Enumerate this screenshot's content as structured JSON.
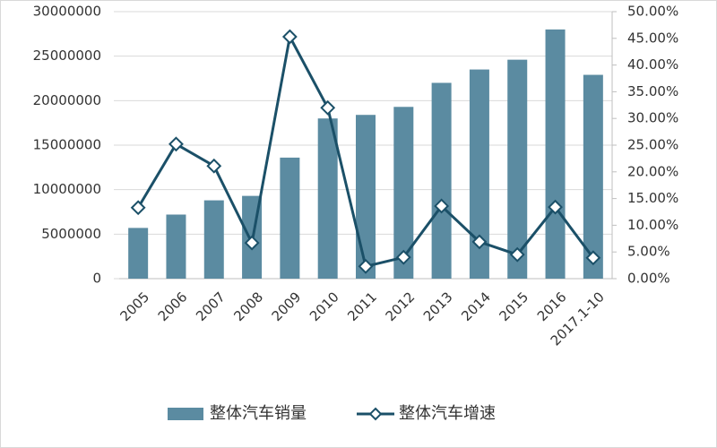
{
  "chart_data": {
    "type": "bar",
    "categories": [
      "2005",
      "2006",
      "2007",
      "2008",
      "2009",
      "2010",
      "2011",
      "2012",
      "2013",
      "2014",
      "2015",
      "2016",
      "2017.1-10"
    ],
    "series": [
      {
        "name": "整体汽车销量",
        "type": "bar",
        "color": "#5b8ba1",
        "values": [
          5700000,
          7200000,
          8800000,
          9300000,
          13600000,
          18000000,
          18400000,
          19300000,
          22000000,
          23500000,
          24600000,
          28000000,
          22900000
        ]
      },
      {
        "name": "整体汽车增速",
        "type": "line",
        "axis": "y2",
        "color": "#1b5068",
        "values": [
          13.3,
          25.2,
          21.1,
          6.7,
          45.3,
          32.0,
          2.3,
          4.0,
          13.6,
          6.9,
          4.5,
          13.4,
          3.9
        ]
      }
    ],
    "ylim": [
      0,
      30000000
    ],
    "yticks": [
      0,
      5000000,
      10000000,
      15000000,
      20000000,
      25000000,
      30000000
    ],
    "y2lim": [
      0,
      50
    ],
    "y2ticks": [
      {
        "value": 0,
        "label": "0.00%"
      },
      {
        "value": 5,
        "label": "5.00%"
      },
      {
        "value": 10,
        "label": "10.00%"
      },
      {
        "value": 15,
        "label": "15.00%"
      },
      {
        "value": 20,
        "label": "20.00%"
      },
      {
        "value": 25,
        "label": "25.00%"
      },
      {
        "value": 30,
        "label": "30.00%"
      },
      {
        "value": 35,
        "label": "35.00%"
      },
      {
        "value": 40,
        "label": "40.00%"
      },
      {
        "value": 45,
        "label": "45.00%"
      },
      {
        "value": 50,
        "label": "50.00%"
      }
    ],
    "grid": true
  }
}
